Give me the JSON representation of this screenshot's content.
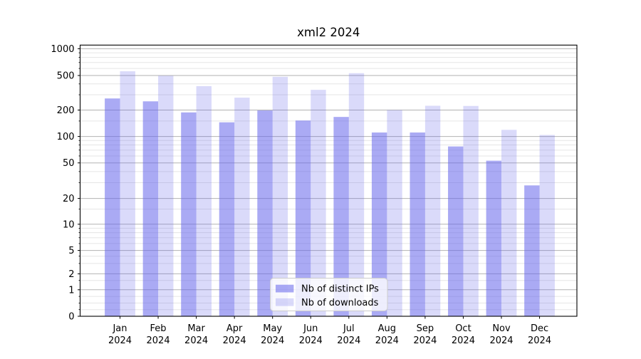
{
  "title": "xml2 2024",
  "chart_data": {
    "type": "bar",
    "title": "xml2 2024",
    "categories": [
      "Jan",
      "Feb",
      "Mar",
      "Apr",
      "May",
      "Jun",
      "Jul",
      "Aug",
      "Sep",
      "Oct",
      "Nov",
      "Dec"
    ],
    "year_label": "2024",
    "series": [
      {
        "name": "Nb of distinct IPs",
        "color": "rgba(100,100,235,0.55)",
        "values": [
          272,
          252,
          188,
          145,
          198,
          152,
          167,
          111,
          111,
          77,
          53,
          28
        ]
      },
      {
        "name": "Nb of downloads",
        "color": "rgba(100,100,235,0.24)",
        "values": [
          558,
          497,
          377,
          278,
          483,
          342,
          531,
          200,
          224,
          223,
          119,
          104
        ]
      }
    ],
    "yscale": "symlog",
    "yticks": [
      0,
      1,
      2,
      5,
      10,
      20,
      50,
      100,
      200,
      500,
      1000
    ],
    "ylim": [
      0,
      1100
    ],
    "grid": true,
    "legend_position": "lower center"
  },
  "colors": {
    "grid_major": "rgba(0,0,0,0.30)",
    "grid_minor": "rgba(0,0,0,0.10)",
    "axis": "#000000",
    "legend_bg": "rgba(255,255,255,0.8)",
    "legend_border": "#cccccc"
  }
}
